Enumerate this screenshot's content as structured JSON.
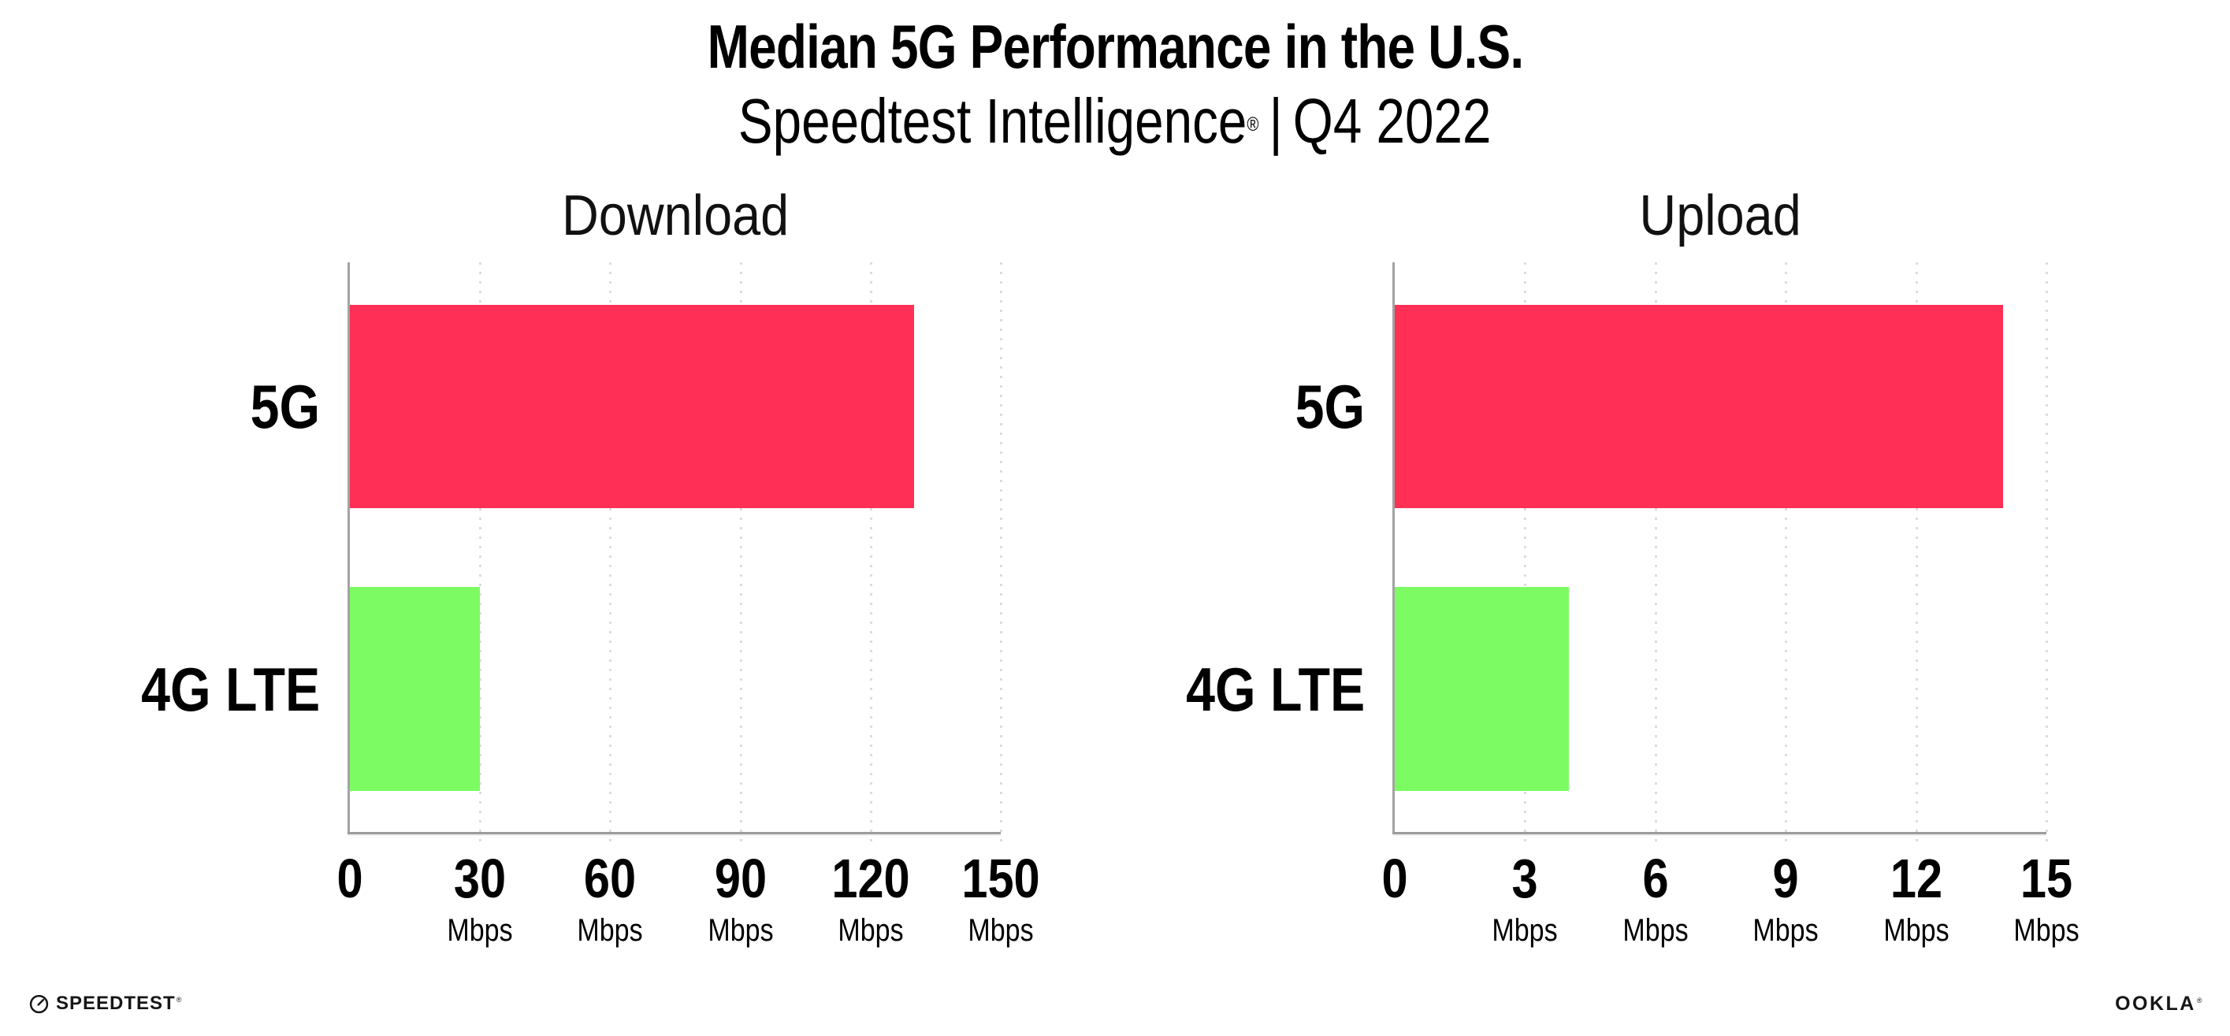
{
  "header": {
    "title": "Median 5G Performance in the U.S.",
    "subtitle_brand": "Speedtest Intelligence",
    "subtitle_reg": "®",
    "subtitle_sep": "|",
    "subtitle_period": "Q4 2022"
  },
  "chart_data": [
    {
      "type": "bar",
      "orientation": "horizontal",
      "title": "Download",
      "categories": [
        "5G",
        "4G LTE"
      ],
      "values": [
        130,
        30
      ],
      "unit": "Mbps",
      "xlim": [
        0,
        150
      ],
      "xticks": [
        0,
        30,
        60,
        90,
        120,
        150
      ],
      "bar_colors": [
        "#ff2f56",
        "#7dfb63"
      ],
      "grid": "vertical-dotted",
      "legend": "none"
    },
    {
      "type": "bar",
      "orientation": "horizontal",
      "title": "Upload",
      "categories": [
        "5G",
        "4G LTE"
      ],
      "values": [
        14,
        4
      ],
      "unit": "Mbps",
      "xlim": [
        0,
        15
      ],
      "xticks": [
        0,
        3,
        6,
        9,
        12,
        15
      ],
      "bar_colors": [
        "#ff2f56",
        "#7dfb63"
      ],
      "grid": "vertical-dotted",
      "legend": "none"
    }
  ],
  "footer": {
    "speedtest_label": "SPEEDTEST",
    "speedtest_reg": "®",
    "ookla_label": "OOKLA",
    "ookla_reg": "®"
  },
  "colors": {
    "bar_5g": "#ff2f56",
    "bar_4g_lte": "#7dfb63",
    "axis_line": "#a0a0a0",
    "gridline": "#dcdce8",
    "text": "#0d0d0d",
    "background": "#ffffff"
  }
}
